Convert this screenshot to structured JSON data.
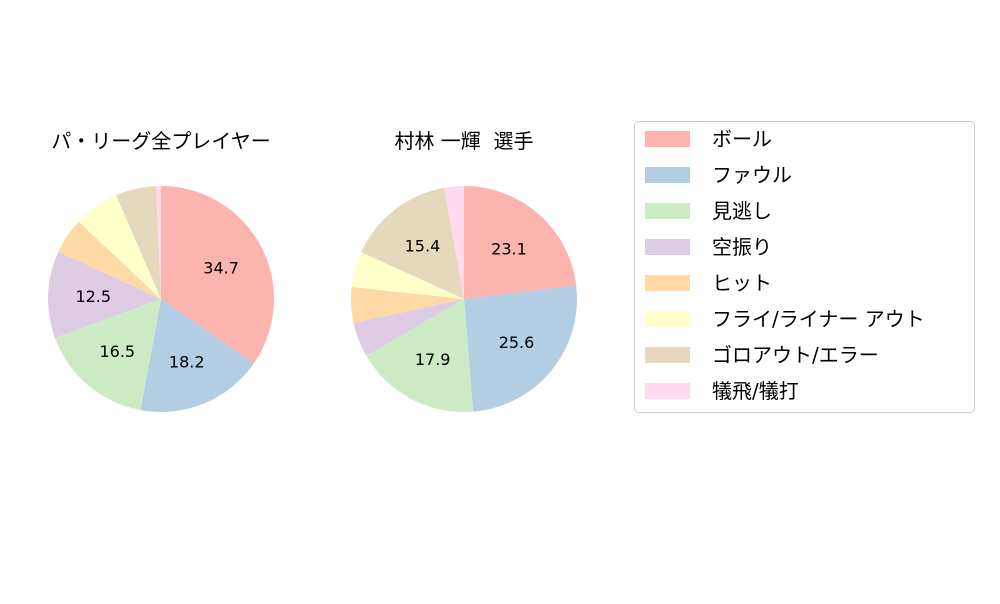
{
  "chart_data": [
    {
      "type": "pie",
      "title": "パ・リーグ全プレイヤー",
      "categories": [
        "ボール",
        "ファウル",
        "見逃し",
        "空振り",
        "ヒット",
        "フライ/ライナー アウト",
        "ゴロアウト/エラー",
        "犠飛/犠打"
      ],
      "values": [
        34.7,
        18.2,
        16.5,
        12.5,
        5.1,
        6.5,
        5.8,
        0.7
      ],
      "labels_shown": [
        "34.7",
        "18.2",
        "16.5",
        "12.5"
      ]
    },
    {
      "type": "pie",
      "title": "村林 一輝  選手",
      "categories": [
        "ボール",
        "ファウル",
        "見逃し",
        "空振り",
        "ヒット",
        "フライ/ライナー アウト",
        "ゴロアウト/エラー",
        "犠飛/犠打"
      ],
      "values": [
        23.1,
        25.6,
        17.9,
        5.0,
        5.1,
        5.1,
        15.4,
        2.8
      ],
      "labels_shown": [
        "23.1",
        "25.6",
        "17.9",
        "15.4"
      ]
    }
  ],
  "legend": {
    "placement": "right",
    "entries": [
      "ボール",
      "ファウル",
      "見逃し",
      "空振り",
      "ヒット",
      "フライ/ライナー アウト",
      "ゴロアウト/エラー",
      "犠飛/犠打"
    ]
  },
  "colors": [
    "#fbb4ae",
    "#b3cde3",
    "#ccebc5",
    "#decbe4",
    "#fed9a6",
    "#ffffcc",
    "#e5d8bd",
    "#fddaec"
  ]
}
